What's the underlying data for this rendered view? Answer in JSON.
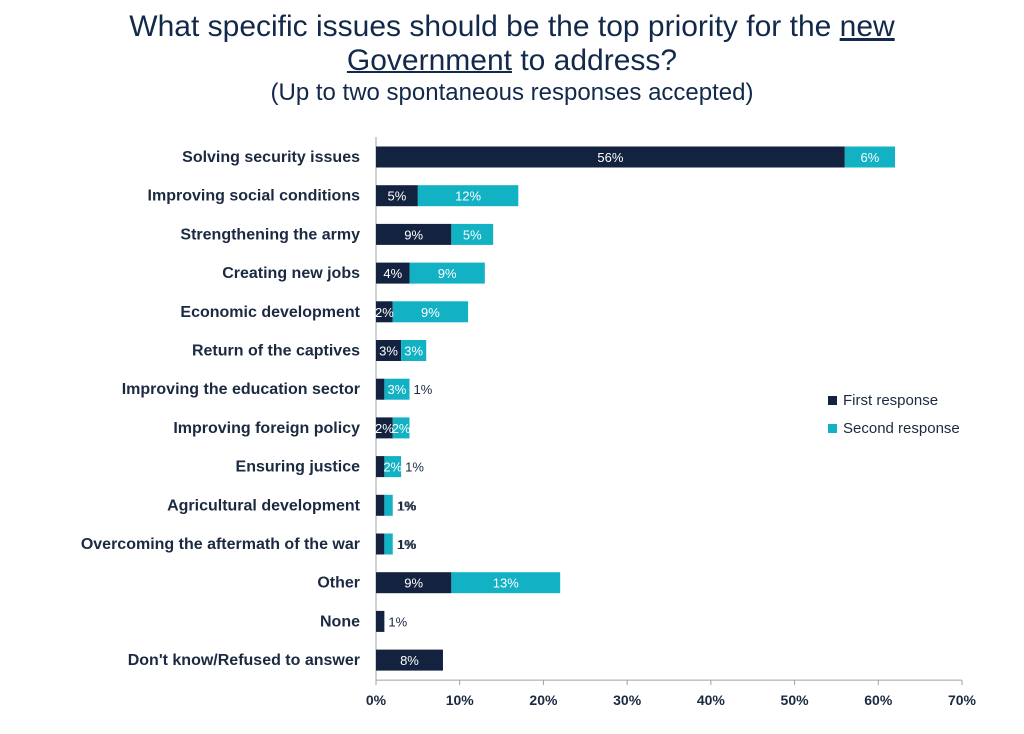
{
  "header": {
    "title_line1": "What specific issues should be the top priority for the",
    "title_word_underlined_1": "new",
    "title_word_underlined_2": "Government",
    "title_line2_rest": "to address?",
    "subtitle": "(Up to two spontaneous responses accepted)"
  },
  "colors": {
    "first": "#13223f",
    "second": "#12b1c4",
    "axis": "#9aa3ad"
  },
  "chart_data": {
    "type": "bar",
    "orientation": "horizontal",
    "stacked": true,
    "categories": [
      "Solving security issues",
      "Improving social conditions",
      "Strengthening the army",
      "Creating new jobs",
      "Economic development",
      "Return of the captives",
      "Improving the education sector",
      "Improving foreign policy",
      "Ensuring justice",
      "Agricultural development",
      "Overcoming the aftermath of the war",
      "Other",
      "None",
      "Don't know/Refused to answer"
    ],
    "series": [
      {
        "name": "First response",
        "values": [
          56,
          5,
          9,
          4,
          2,
          3,
          1,
          2,
          1,
          1,
          1,
          9,
          1,
          8
        ],
        "labels": [
          "56%",
          "5%",
          "9%",
          "4%",
          "2%",
          "3%",
          "1%",
          "2%",
          "1%",
          "1%",
          "1%",
          "9%",
          "1%",
          "8%"
        ]
      },
      {
        "name": "Second response",
        "values": [
          6,
          12,
          5,
          9,
          9,
          3,
          3,
          2,
          2,
          1,
          1,
          13,
          0,
          0
        ],
        "labels": [
          "6%",
          "12%",
          "5%",
          "9%",
          "9%",
          "3%",
          "3%",
          "2%",
          "2%",
          "1%",
          "1%",
          "13%",
          "",
          ""
        ]
      }
    ],
    "xlim": [
      0,
      70
    ],
    "xticks": [
      "0%",
      "10%",
      "20%",
      "30%",
      "40%",
      "50%",
      "60%",
      "70%"
    ],
    "legend": "right"
  }
}
